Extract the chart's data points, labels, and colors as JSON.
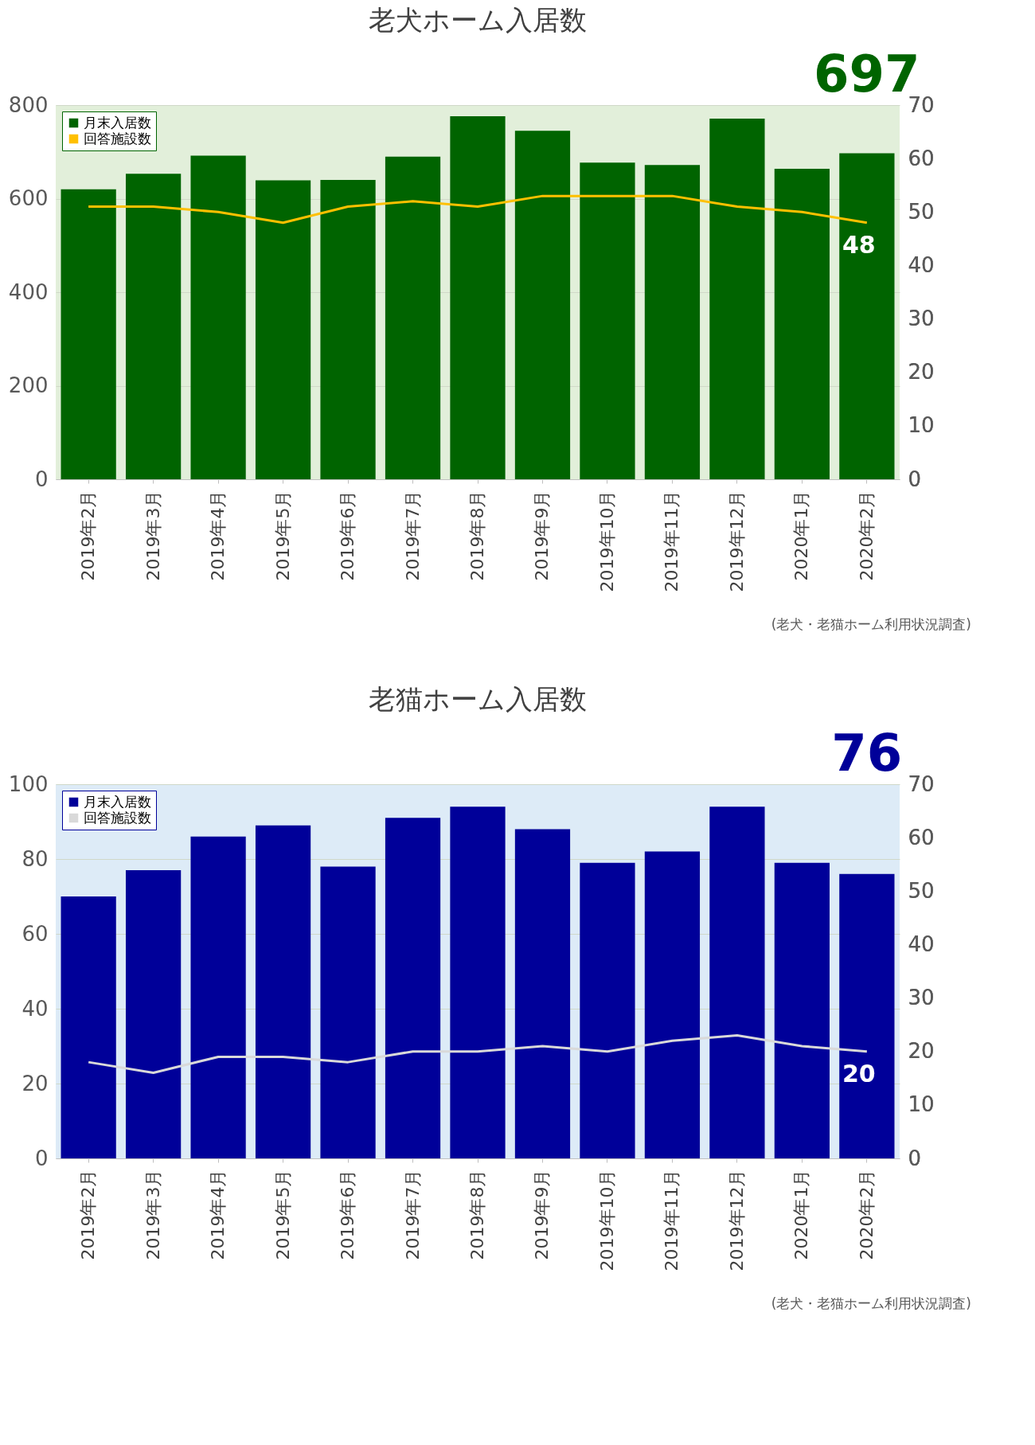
{
  "chart_data": [
    {
      "type": "bar",
      "title": "老犬ホーム入居数",
      "categories": [
        "2019年2月",
        "2019年3月",
        "2019年4月",
        "2019年5月",
        "2019年6月",
        "2019年7月",
        "2019年8月",
        "2019年9月",
        "2019年10月",
        "2019年11月",
        "2019年12月",
        "2020年1月",
        "2020年2月"
      ],
      "series": [
        {
          "name": "月末入居数",
          "color": "#006400",
          "values": [
            620,
            653,
            692,
            639,
            640,
            690,
            776,
            745,
            677,
            672,
            771,
            664,
            697
          ],
          "value_labels": [
            null,
            null,
            null,
            null,
            null,
            null,
            null,
            null,
            null,
            null,
            null,
            null,
            "697"
          ]
        },
        {
          "name": "回答施設数",
          "type": "line",
          "axis": "y2",
          "color": "#ffc000",
          "values": [
            51,
            51,
            50,
            48,
            51,
            52,
            51,
            53,
            53,
            53,
            51,
            50,
            48
          ],
          "value_labels": [
            null,
            null,
            null,
            null,
            null,
            null,
            null,
            null,
            null,
            null,
            null,
            null,
            "48"
          ]
        }
      ],
      "ylim": [
        0,
        800
      ],
      "yticks": [
        0,
        200,
        400,
        600,
        800
      ],
      "y2lim": [
        0,
        70
      ],
      "y2ticks": [
        0,
        10,
        20,
        30,
        40,
        50,
        60,
        70
      ],
      "grid": "y",
      "legend": "top left",
      "annotations": [
        "(老犬・老猫ホーム利用状況調査)"
      ]
    },
    {
      "type": "bar",
      "title": "老猫ホーム入居数",
      "categories": [
        "2019年2月",
        "2019年3月",
        "2019年4月",
        "2019年5月",
        "2019年6月",
        "2019年7月",
        "2019年8月",
        "2019年9月",
        "2019年10月",
        "2019年11月",
        "2019年12月",
        "2020年1月",
        "2020年2月"
      ],
      "series": [
        {
          "name": "月末入居数",
          "color": "#000099",
          "values": [
            70,
            77,
            86,
            89,
            78,
            91,
            94,
            88,
            79,
            82,
            94,
            79,
            76
          ],
          "value_labels": [
            null,
            null,
            null,
            null,
            null,
            null,
            null,
            null,
            null,
            null,
            null,
            null,
            "76"
          ]
        },
        {
          "name": "回答施設数",
          "type": "line",
          "axis": "y2",
          "color": "#d9d9d9",
          "values": [
            18,
            16,
            19,
            19,
            18,
            20,
            20,
            21,
            20,
            22,
            23,
            21,
            20
          ],
          "value_labels": [
            null,
            null,
            null,
            null,
            null,
            null,
            null,
            null,
            null,
            null,
            null,
            null,
            "20"
          ]
        }
      ],
      "ylim": [
        0,
        100
      ],
      "yticks": [
        0,
        20,
        40,
        60,
        80,
        100
      ],
      "y2lim": [
        0,
        70
      ],
      "y2ticks": [
        0,
        10,
        20,
        30,
        40,
        50,
        60,
        70
      ],
      "grid": "y",
      "legend": "top left",
      "annotations": [
        "(老犬・老猫ホーム利用状況調査)"
      ]
    }
  ]
}
